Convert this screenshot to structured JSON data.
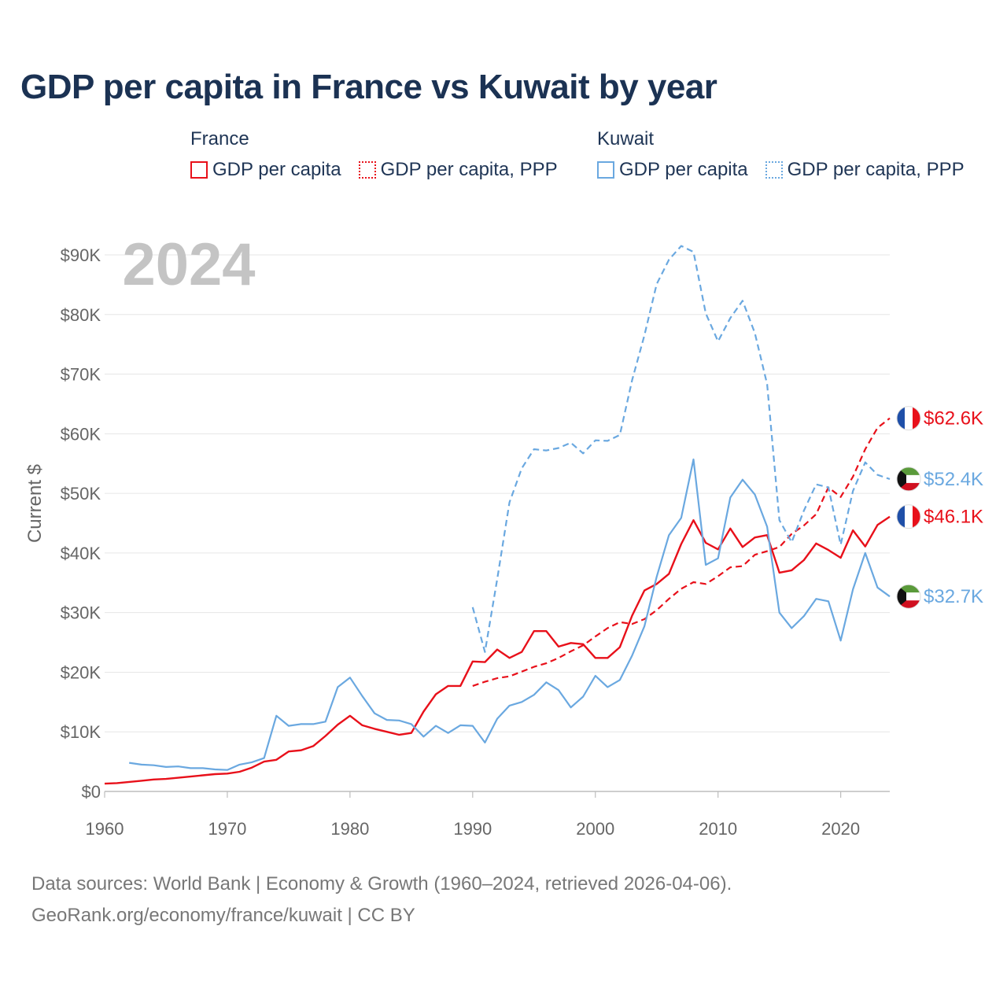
{
  "title": "GDP per capita in France vs Kuwait by year",
  "legend": {
    "france": {
      "heading": "France",
      "gdp": "GDP per capita",
      "ppp": "GDP per capita, PPP"
    },
    "kuwait": {
      "heading": "Kuwait",
      "gdp": "GDP per capita",
      "ppp": "GDP per capita, PPP"
    }
  },
  "colors": {
    "france": "#e8101a",
    "kuwait": "#6aa8e0"
  },
  "year_display": "2024",
  "source": {
    "line1": "Data sources: World Bank | Economy & Growth (1960–2024, retrieved 2026-04-06).",
    "line2": "GeoRank.org/economy/france/kuwait | CC BY"
  },
  "chart_data": {
    "type": "line",
    "ylabel": "Current $",
    "xlim": [
      1960,
      2024
    ],
    "ylim": [
      0,
      90000
    ],
    "x_ticks": [
      1960,
      1970,
      1980,
      1990,
      2000,
      2010,
      2020
    ],
    "y_ticks": [
      {
        "value": 0,
        "label": "$0"
      },
      {
        "value": 10000,
        "label": "$10K"
      },
      {
        "value": 20000,
        "label": "$20K"
      },
      {
        "value": 30000,
        "label": "$30K"
      },
      {
        "value": 40000,
        "label": "$40K"
      },
      {
        "value": 50000,
        "label": "$50K"
      },
      {
        "value": 60000,
        "label": "$60K"
      },
      {
        "value": 70000,
        "label": "$70K"
      },
      {
        "value": 80000,
        "label": "$80K"
      },
      {
        "value": 90000,
        "label": "$90K"
      }
    ],
    "series": [
      {
        "name": "France GDP per capita",
        "country": "france",
        "style": "solid",
        "end_label": "$46.1K",
        "x": [
          1960,
          1961,
          1962,
          1963,
          1964,
          1965,
          1966,
          1967,
          1968,
          1969,
          1970,
          1971,
          1972,
          1973,
          1974,
          1975,
          1976,
          1977,
          1978,
          1979,
          1980,
          1981,
          1982,
          1983,
          1984,
          1985,
          1986,
          1987,
          1988,
          1989,
          1990,
          1991,
          1992,
          1993,
          1994,
          1995,
          1996,
          1997,
          1998,
          1999,
          2000,
          2001,
          2002,
          2003,
          2004,
          2005,
          2006,
          2007,
          2008,
          2009,
          2010,
          2011,
          2012,
          2013,
          2014,
          2015,
          2016,
          2017,
          2018,
          2019,
          2020,
          2021,
          2022,
          2023,
          2024
        ],
        "values": [
          1300,
          1400,
          1600,
          1800,
          2000,
          2100,
          2300,
          2500,
          2700,
          2900,
          3000,
          3300,
          4000,
          5000,
          5300,
          6700,
          6900,
          7600,
          9300,
          11200,
          12700,
          11100,
          10500,
          10000,
          9500,
          9800,
          13400,
          16300,
          17700,
          17700,
          21800,
          21700,
          23800,
          22400,
          23400,
          26900,
          26900,
          24300,
          24900,
          24700,
          22400,
          22400,
          24200,
          29500,
          33700,
          34800,
          36500,
          41500,
          45500,
          41700,
          40600,
          44100,
          41000,
          42600,
          43000,
          36700,
          37100,
          38800,
          41600,
          40500,
          39200,
          43800,
          41100,
          44700,
          46100
        ]
      },
      {
        "name": "France GDP per capita, PPP",
        "country": "france",
        "style": "dash",
        "end_label": "$62.6K",
        "x": [
          1990,
          1991,
          1992,
          1993,
          1994,
          1995,
          1996,
          1997,
          1998,
          1999,
          2000,
          2001,
          2002,
          2003,
          2004,
          2005,
          2006,
          2007,
          2008,
          2009,
          2010,
          2011,
          2012,
          2013,
          2014,
          2015,
          2016,
          2017,
          2018,
          2019,
          2020,
          2021,
          2022,
          2023,
          2024
        ],
        "values": [
          17700,
          18400,
          19000,
          19300,
          20100,
          20900,
          21500,
          22400,
          23500,
          24500,
          26000,
          27400,
          28400,
          28100,
          28900,
          30400,
          32300,
          34000,
          35100,
          34800,
          36100,
          37600,
          37800,
          39700,
          40300,
          41000,
          43200,
          44600,
          46500,
          51000,
          49400,
          52800,
          57400,
          61000,
          62600
        ]
      },
      {
        "name": "Kuwait GDP per capita",
        "country": "kuwait",
        "style": "solid",
        "end_label": "$32.7K",
        "x": [
          1962,
          1963,
          1964,
          1965,
          1966,
          1967,
          1968,
          1969,
          1970,
          1971,
          1972,
          1973,
          1974,
          1975,
          1976,
          1977,
          1978,
          1979,
          1980,
          1981,
          1982,
          1983,
          1984,
          1985,
          1986,
          1987,
          1988,
          1989,
          1990,
          1991,
          1992,
          1993,
          1994,
          1995,
          1996,
          1997,
          1998,
          1999,
          2000,
          2001,
          2002,
          2003,
          2004,
          2005,
          2006,
          2007,
          2008,
          2009,
          2010,
          2011,
          2012,
          2013,
          2014,
          2015,
          2016,
          2017,
          2018,
          2019,
          2020,
          2021,
          2022,
          2023,
          2024
        ],
        "values": [
          4800,
          4500,
          4400,
          4100,
          4200,
          3900,
          3900,
          3700,
          3600,
          4500,
          4900,
          5600,
          12700,
          11000,
          11300,
          11300,
          11700,
          17500,
          19100,
          16000,
          13100,
          12000,
          11900,
          11300,
          9200,
          11000,
          9800,
          11100,
          11000,
          8200,
          12200,
          14400,
          15000,
          16200,
          18300,
          17000,
          14100,
          15900,
          19400,
          17500,
          18700,
          22800,
          27700,
          36000,
          43000,
          45900,
          55700,
          38000,
          39100,
          49300,
          52300,
          49800,
          44400,
          30000,
          27400,
          29400,
          32300,
          31900,
          25300,
          33900,
          40000,
          34200,
          32700
        ]
      },
      {
        "name": "Kuwait GDP per capita, PPP",
        "country": "kuwait",
        "style": "dash",
        "end_label": "$52.4K",
        "x": [
          1990,
          1991,
          1992,
          1993,
          1994,
          1995,
          1996,
          1997,
          1998,
          1999,
          2000,
          2001,
          2002,
          2003,
          2004,
          2005,
          2006,
          2007,
          2008,
          2009,
          2010,
          2011,
          2012,
          2013,
          2014,
          2015,
          2016,
          2017,
          2018,
          2019,
          2020,
          2021,
          2022,
          2023,
          2024
        ],
        "values": [
          30900,
          23400,
          35600,
          48500,
          54200,
          57400,
          57200,
          57600,
          58500,
          56700,
          58900,
          58800,
          59800,
          69000,
          76500,
          85100,
          89200,
          91500,
          90500,
          80200,
          75500,
          79400,
          82300,
          76900,
          68300,
          45500,
          41800,
          47100,
          51500,
          51000,
          41400,
          50400,
          55200,
          53100,
          52400
        ]
      }
    ]
  }
}
